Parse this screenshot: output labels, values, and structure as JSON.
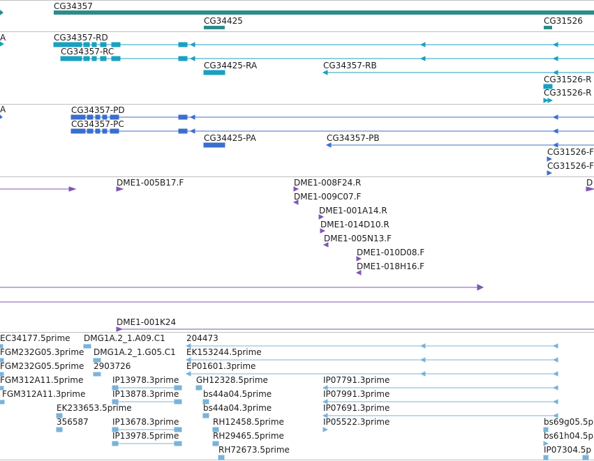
{
  "colors": {
    "gene": "#2e8b8b",
    "transcript": "#1aa0c0",
    "protein": "#3a6fcf",
    "bac": "#7e57b5",
    "est": "#7ab3da"
  },
  "tracks": {
    "gene": [
      "CG34357",
      "CG34425",
      "CG31526"
    ],
    "transcript": [
      "A",
      "CG34357-RD",
      "CG34357-RC",
      "CG34425-RA",
      "CG34357-RB",
      "CG31526-R",
      "CG31526-R"
    ],
    "protein": [
      "A",
      "CG34357-PD",
      "CG34357-PC",
      "CG34425-PA",
      "CG34357-PB",
      "CG31526-F",
      "CG31526-F"
    ],
    "bac": [
      "DME1-005B17.F",
      "DME1-008F24.R",
      "DME1-009C07.F",
      "DME1-001A14.R",
      "DME1-014D10.R",
      "DME1-005N13.F",
      "DME1-010D08.F",
      "DME1-018H16.F",
      "D",
      "DME1-001K24"
    ],
    "est": [
      "EC34177.5prime",
      "DMG1A.2_1.A09.C1",
      "204473",
      "FGM232G05.3prime",
      "DMG1A.2_1.G05.C1",
      "EK153244.5prime",
      "FGM232G05.5prime",
      "2903726",
      "EP01601.3prime",
      "FGM312A11.5prime",
      "IP13978.3prime",
      "GH12328.5prime",
      "IP07791.3prime",
      "FGM312A11.3prime",
      "IP13878.3prime",
      "bs44a04.5prime",
      "IP07991.3prime",
      "EK233653.5prime",
      "bs44a04.3prime",
      "IP07691.3prime",
      "356587",
      "IP13678.3prime",
      "RH12458.5prime",
      "IP05522.3prime",
      "bs69g05.5p",
      "IP13978.5prime",
      "RH29465.5prime",
      "bs61h04.5p",
      "RH72673.5prime",
      "IP07304.5p"
    ]
  }
}
